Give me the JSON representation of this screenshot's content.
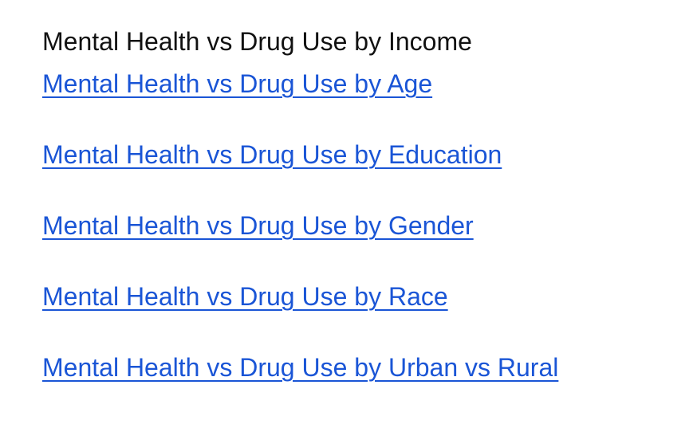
{
  "page": {
    "current_title": "Mental Health vs Drug Use by Income",
    "links": [
      {
        "label": "Mental Health vs Drug Use by Age"
      },
      {
        "label": "Mental Health vs Drug Use by Education"
      },
      {
        "label": "Mental Health vs Drug Use by Gender"
      },
      {
        "label": "Mental Health vs Drug Use by Race"
      },
      {
        "label": "Mental Health vs Drug Use by Urban vs Rural"
      }
    ]
  },
  "colors": {
    "link": "#1a55d6",
    "text": "#111111",
    "background": "#ffffff"
  }
}
